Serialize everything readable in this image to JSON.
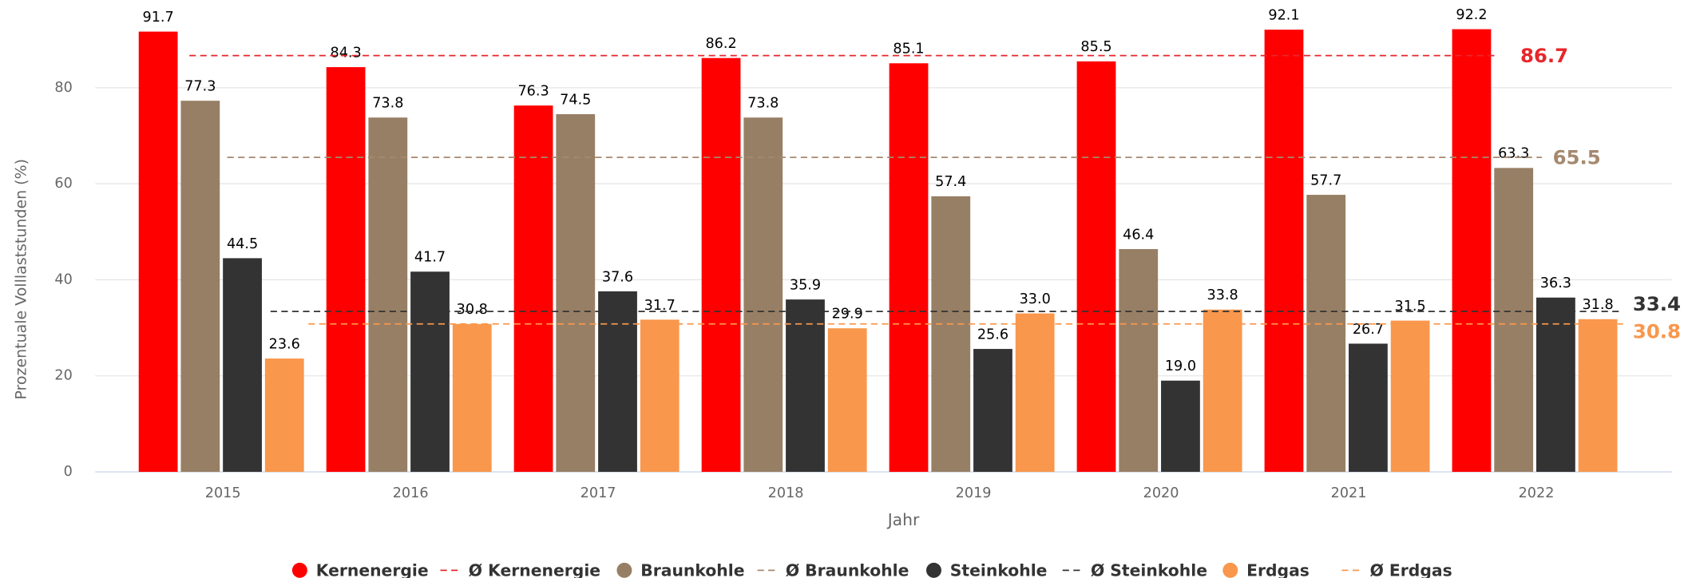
{
  "chart_data": {
    "type": "bar",
    "x_label": "Jahr",
    "y_label": "Prozentuale Volllaststunden (%)",
    "categories": [
      "2015",
      "2016",
      "2017",
      "2018",
      "2019",
      "2020",
      "2021",
      "2022"
    ],
    "series": [
      {
        "name": "Kernenergie",
        "color": "#ff0000",
        "values": [
          91.7,
          84.3,
          76.3,
          86.2,
          85.1,
          85.5,
          92.1,
          92.2
        ],
        "value_labels": [
          "91.7",
          "84.3",
          "76.3",
          "86.2",
          "85.1",
          "85.5",
          "92.1",
          "92.2"
        ]
      },
      {
        "name": "Braunkohle",
        "color": "#977f65",
        "values": [
          77.3,
          73.8,
          74.5,
          73.8,
          57.4,
          46.4,
          57.7,
          63.3
        ],
        "value_labels": [
          "77.3",
          "73.8",
          "74.5",
          "73.8",
          "57.4",
          "46.4",
          "57.7",
          "63.3"
        ]
      },
      {
        "name": "Steinkohle",
        "color": "#333333",
        "values": [
          44.5,
          41.7,
          37.6,
          35.9,
          25.6,
          19,
          26.7,
          36.3
        ],
        "value_labels": [
          "44.5",
          "41.7",
          "37.6",
          "35.9",
          "25.6",
          "19.0",
          "26.7",
          "36.3"
        ]
      },
      {
        "name": "Erdgas",
        "color": "#f9974c",
        "values": [
          23.6,
          30.8,
          31.7,
          29.9,
          33,
          33.8,
          31.5,
          31.8
        ],
        "value_labels": [
          "23.6",
          "30.8",
          "31.7",
          "29.9",
          "33.0",
          "33.8",
          "31.5",
          "31.8"
        ]
      }
    ],
    "averages": [
      {
        "name": "Ø Kernenergie",
        "color": "#e8262a",
        "value": 86.7
      },
      {
        "name": "Ø Braunkohle",
        "color": "#a5896e",
        "value": 65.5
      },
      {
        "name": "Ø Steinkohle",
        "color": "#333333",
        "value": 33.4
      },
      {
        "name": "Ø Erdgas",
        "color": "#f9974c",
        "value": 30.8
      }
    ],
    "ylim": [
      0,
      95
    ],
    "yticks": [
      0,
      20,
      40,
      60,
      80
    ],
    "grid": true
  }
}
